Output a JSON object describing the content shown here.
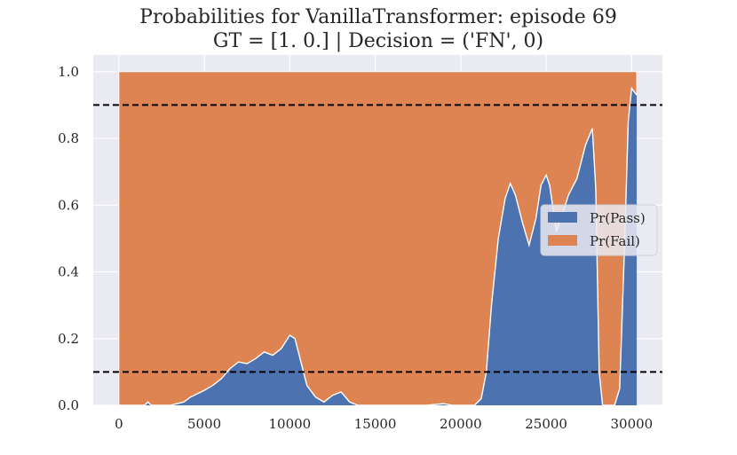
{
  "chart_data": {
    "type": "area",
    "title": "Probabilities for VanillaTransformer: episode 69",
    "subtitle": "GT = [1. 0.] | Decision = ('FN', 0)",
    "xlabel": "",
    "ylabel": "",
    "xlim": [
      -1500,
      31800
    ],
    "ylim": [
      0.0,
      1.05
    ],
    "xticks": [
      0,
      5000,
      10000,
      15000,
      20000,
      25000,
      30000
    ],
    "yticks": [
      0.0,
      0.2,
      0.4,
      0.6,
      0.8,
      1.0
    ],
    "xtick_labels": [
      "0",
      "5000",
      "10000",
      "15000",
      "20000",
      "25000",
      "30000"
    ],
    "ytick_labels": [
      "0.0",
      "0.2",
      "0.4",
      "0.6",
      "0.8",
      "1.0"
    ],
    "grid": true,
    "legend_position": "center-right",
    "stacked": true,
    "x_end": 30300,
    "thresholds": [
      0.9,
      0.1
    ],
    "series": [
      {
        "name": "Pr(Pass)",
        "color": "#4c72b0",
        "x": [
          0,
          1000,
          1500,
          1700,
          1900,
          2200,
          3000,
          3800,
          4200,
          4600,
          5000,
          5500,
          6000,
          6500,
          7000,
          7500,
          8000,
          8500,
          9000,
          9500,
          10000,
          10300,
          10600,
          11000,
          11500,
          12000,
          12500,
          13000,
          13500,
          14000,
          16000,
          18000,
          19000,
          19500,
          20000,
          20800,
          21200,
          21500,
          21800,
          22200,
          22600,
          22900,
          23200,
          23600,
          24000,
          24400,
          24700,
          25000,
          25200,
          25600,
          26000,
          26300,
          26800,
          27300,
          27700,
          27900,
          28100,
          28300,
          28600,
          29000,
          29300,
          29600,
          29800,
          30000,
          30300
        ],
        "values": [
          0.0,
          0.0,
          0.0,
          0.01,
          0.0,
          0.0,
          0.0,
          0.01,
          0.025,
          0.035,
          0.045,
          0.06,
          0.08,
          0.11,
          0.13,
          0.125,
          0.14,
          0.16,
          0.15,
          0.17,
          0.21,
          0.2,
          0.14,
          0.06,
          0.025,
          0.01,
          0.03,
          0.04,
          0.01,
          0.0,
          0.0,
          0.0,
          0.005,
          0.0,
          0.0,
          0.0,
          0.02,
          0.1,
          0.3,
          0.5,
          0.62,
          0.665,
          0.63,
          0.55,
          0.48,
          0.56,
          0.66,
          0.69,
          0.66,
          0.52,
          0.58,
          0.63,
          0.68,
          0.78,
          0.83,
          0.65,
          0.1,
          0.0,
          0.0,
          0.0,
          0.05,
          0.5,
          0.85,
          0.95,
          0.93
        ]
      },
      {
        "name": "Pr(Fail)",
        "color": "#dd8452",
        "note_total": 1.0
      }
    ]
  }
}
